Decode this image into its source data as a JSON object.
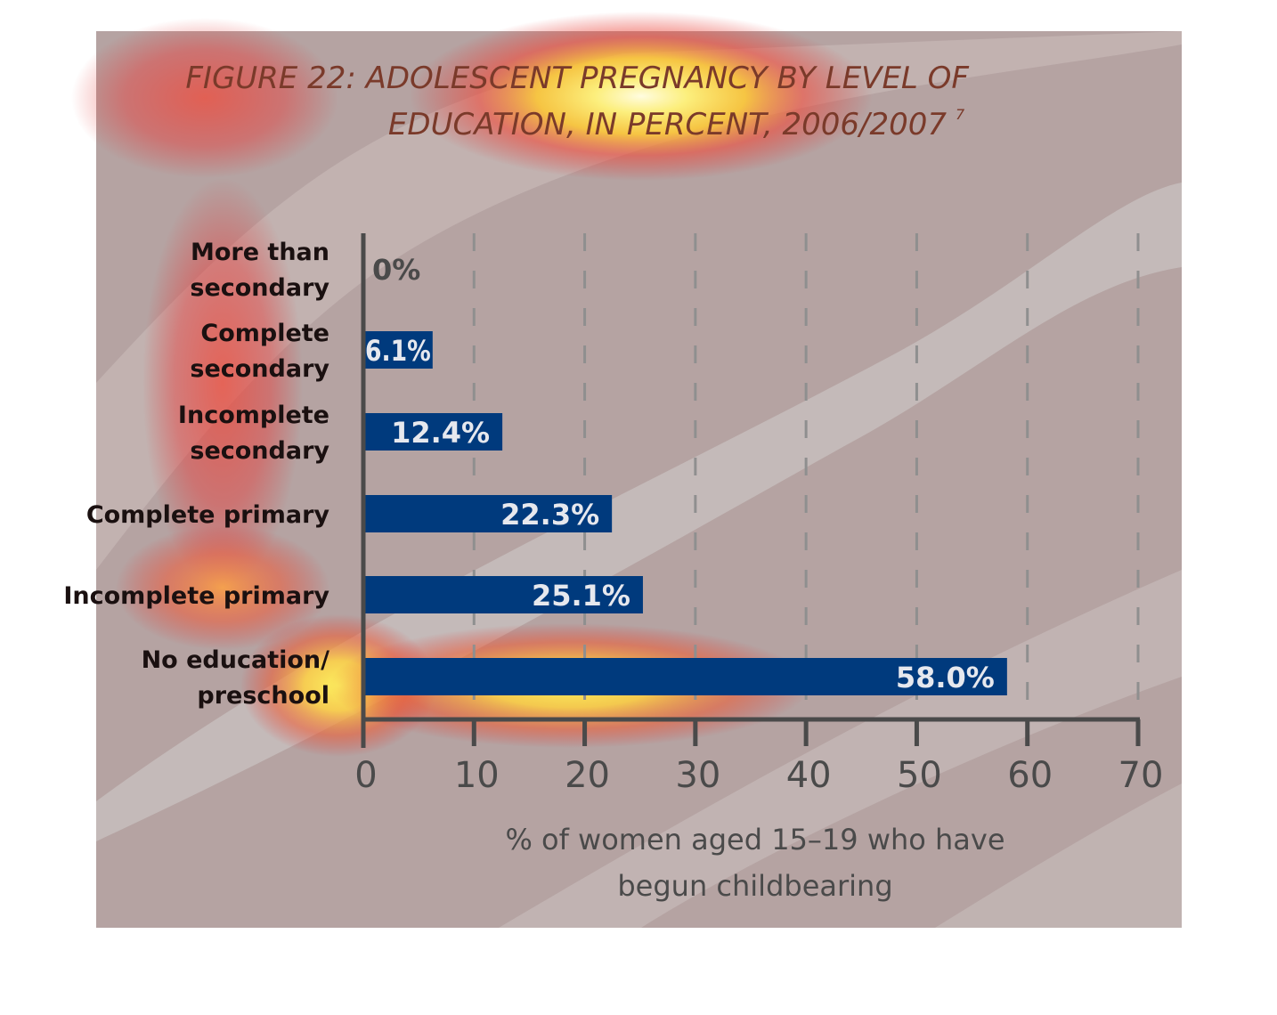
{
  "chart_data": {
    "type": "bar",
    "orientation": "horizontal",
    "title_line1": "FIGURE 22: ADOLESCENT PREGNANCY BY LEVEL OF",
    "title_line2": "EDUCATION, IN PERCENT, 2006/2007",
    "title_footnote": "7",
    "categories": [
      [
        "More than",
        "secondary"
      ],
      [
        "Complete",
        "secondary"
      ],
      [
        "Incomplete",
        "secondary"
      ],
      [
        "Complete primary"
      ],
      [
        "Incomplete primary"
      ],
      [
        "No education/",
        "preschool"
      ]
    ],
    "values": [
      0,
      6.1,
      12.4,
      22.3,
      25.1,
      58.0
    ],
    "value_labels": [
      "0%",
      "6.1%",
      "12.4%",
      "22.3%",
      "25.1%",
      "58.0%"
    ],
    "xlabel_line1": "% of women aged 15–19 who have",
    "xlabel_line2": "begun childbearing",
    "xlim": [
      0,
      70
    ],
    "xticks": [
      "0",
      "10",
      "20",
      "30",
      "40",
      "50",
      "60",
      "70"
    ],
    "grid": "vertical dashed",
    "colors": {
      "bar": "#003a7d",
      "bar_label": "#e6e8ee",
      "panel_bg": "#b5a3a2",
      "axis": "#4a4a4a",
      "category_text": "#1a1010",
      "title_text": "#7a3a2a"
    }
  }
}
